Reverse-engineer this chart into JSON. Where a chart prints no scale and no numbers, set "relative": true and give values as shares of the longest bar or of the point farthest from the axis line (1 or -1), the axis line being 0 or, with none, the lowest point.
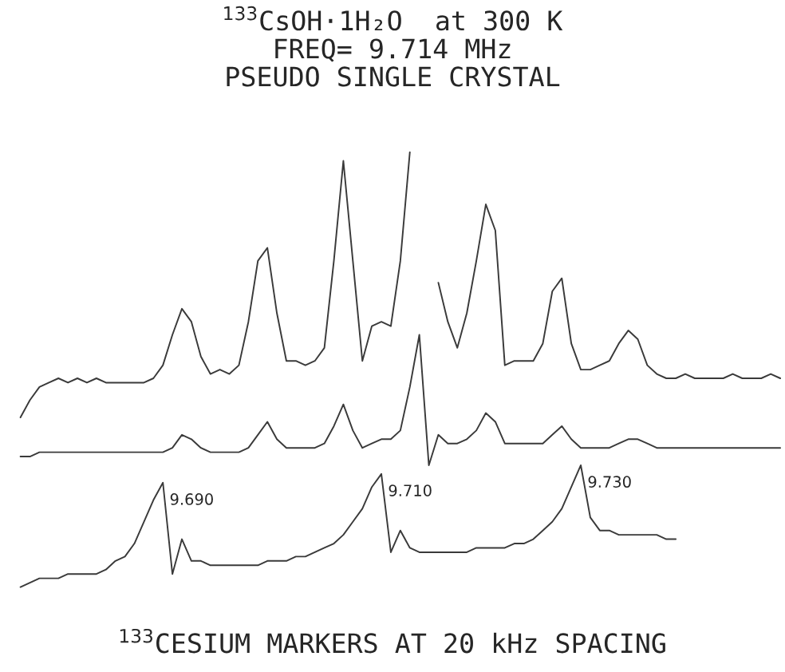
{
  "chart_data": {
    "type": "line",
    "relative": true,
    "title": "$^{133}$CsOH·1H₂O  at 300 K\nFREQ= 9.714 MHz\nPSEUDO SINGLE CRYSTAL",
    "xlabel": "$^{133}$CESIUM MARKERS AT 20 kHz SPACING",
    "categories": [
      null,
      null,
      null,
      null,
      null,
      null,
      null,
      null,
      null,
      null,
      null,
      null,
      null,
      null,
      null,
      null,
      null,
      null,
      null,
      null,
      null,
      null,
      null,
      null,
      null,
      null,
      null,
      null,
      null,
      null,
      null,
      null,
      null,
      null,
      null,
      null,
      null,
      null,
      null,
      null,
      null,
      null,
      null,
      null,
      null,
      null,
      null,
      null,
      null,
      null,
      null,
      null,
      null,
      null,
      null,
      null,
      null,
      null,
      null,
      null,
      null,
      null,
      null,
      null,
      null,
      null,
      null,
      null,
      null,
      null,
      null,
      null,
      null,
      null,
      null,
      null,
      null,
      null,
      null,
      null,
      null
    ],
    "series": [
      {
        "color": "#3a3a3a",
        "values": [
          0.39,
          0.43,
          0.46,
          0.47,
          0.48,
          0.47,
          0.48,
          0.47,
          0.48,
          0.47,
          0.47,
          0.47,
          0.47,
          0.47,
          0.48,
          0.51,
          0.58,
          0.64,
          0.61,
          0.53,
          0.49,
          0.5,
          0.49,
          0.51,
          0.61,
          0.75,
          0.78,
          0.63,
          0.52,
          0.52,
          0.51,
          0.52,
          0.55,
          0.75,
          0.98,
          0.75,
          0.52,
          0.6,
          0.61,
          0.6,
          0.75,
          1.0,
          null,
          null,
          0.7,
          0.61,
          0.55,
          0.63,
          0.75,
          0.88,
          0.82,
          0.51,
          0.52,
          0.52,
          0.52,
          0.56,
          0.68,
          0.71,
          0.56,
          0.5,
          0.5,
          0.51,
          0.52,
          0.56,
          0.59,
          0.57,
          0.51,
          0.49,
          0.48,
          0.48,
          0.49,
          0.48,
          0.48,
          0.48,
          0.48,
          0.49,
          0.48,
          0.48,
          0.48,
          0.49,
          0.48
        ]
      },
      {
        "color": "#3a3a3a",
        "values": [
          0.3,
          0.3,
          0.31,
          0.31,
          0.31,
          0.31,
          0.31,
          0.31,
          0.31,
          0.31,
          0.31,
          0.31,
          0.31,
          0.31,
          0.31,
          0.31,
          0.32,
          0.35,
          0.34,
          0.32,
          0.31,
          0.31,
          0.31,
          0.31,
          0.32,
          0.35,
          0.38,
          0.34,
          0.32,
          0.32,
          0.32,
          0.32,
          0.33,
          0.37,
          0.42,
          0.36,
          0.32,
          0.33,
          0.34,
          0.34,
          0.36,
          0.46,
          0.58,
          0.28,
          0.35,
          0.33,
          0.33,
          0.34,
          0.36,
          0.4,
          0.38,
          0.33,
          0.33,
          0.33,
          0.33,
          0.33,
          0.35,
          0.37,
          0.34,
          0.32,
          0.32,
          0.32,
          0.32,
          0.33,
          0.34,
          0.34,
          0.33,
          0.32,
          0.32,
          0.32,
          0.32,
          0.32,
          0.32,
          0.32,
          0.32,
          0.32,
          0.32,
          0.32,
          0.32,
          0.32,
          0.32
        ]
      },
      {
        "color": "#3a3a3a",
        "values": [
          0.0,
          0.01,
          0.02,
          0.02,
          0.02,
          0.03,
          0.03,
          0.03,
          0.03,
          0.04,
          0.06,
          0.07,
          0.1,
          0.15,
          0.2,
          0.24,
          0.03,
          0.11,
          0.06,
          0.06,
          0.05,
          0.05,
          0.05,
          0.05,
          0.05,
          0.05,
          0.06,
          0.06,
          0.06,
          0.07,
          0.07,
          0.08,
          0.09,
          0.1,
          0.12,
          0.15,
          0.18,
          0.23,
          0.26,
          0.08,
          0.13,
          0.09,
          0.08,
          0.08,
          0.08,
          0.08,
          0.08,
          0.08,
          0.09,
          0.09,
          0.09,
          0.09,
          0.1,
          0.1,
          0.11,
          0.13,
          0.15,
          0.18,
          0.23,
          0.28,
          0.16,
          0.13,
          0.13,
          0.12,
          0.12,
          0.12,
          0.12,
          0.12,
          0.11,
          0.11,
          null,
          null,
          null,
          null,
          null,
          null,
          null,
          null,
          null,
          null,
          null
        ]
      }
    ],
    "annotations": [
      "9.690",
      "9.710",
      "9.730"
    ]
  }
}
